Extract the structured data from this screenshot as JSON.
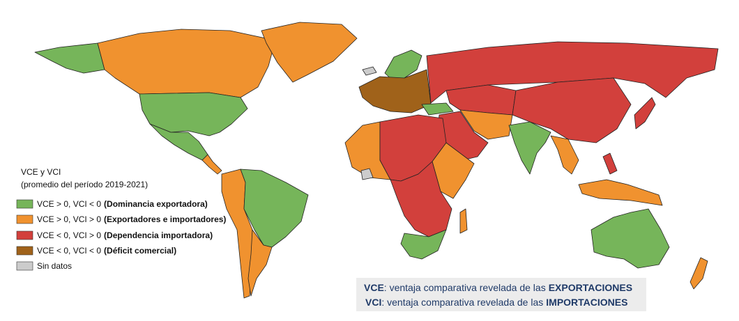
{
  "legend": {
    "title": "VCE y VCI",
    "subtitle": "(promedio del período 2019-2021)",
    "items": [
      {
        "condition": "VCE > 0, VCI < 0",
        "label": "(Dominancia  exportadora)",
        "color": "#76b55a"
      },
      {
        "condition": "VCE > 0, VCI > 0",
        "label": "(Exportadores e importadores)",
        "color": "#f0922f"
      },
      {
        "condition": "VCE < 0, VCI > 0",
        "label": "(Dependencia importadora)",
        "color": "#d2403c"
      },
      {
        "condition": "VCE < 0, VCI < 0",
        "label": "(Déficit comercial)",
        "color": "#a0621a"
      },
      {
        "label": "Sin datos",
        "color": "#cccccc"
      }
    ]
  },
  "note": {
    "lines": [
      {
        "term": "VCE",
        "text": ": ventaja comparativa revelada de las",
        "emphasis": "EXPORTACIONES"
      },
      {
        "term": "VCI",
        "text": ": ventaja comparativa revelada de las",
        "emphasis": "IMPORTACIONES"
      }
    ]
  }
}
